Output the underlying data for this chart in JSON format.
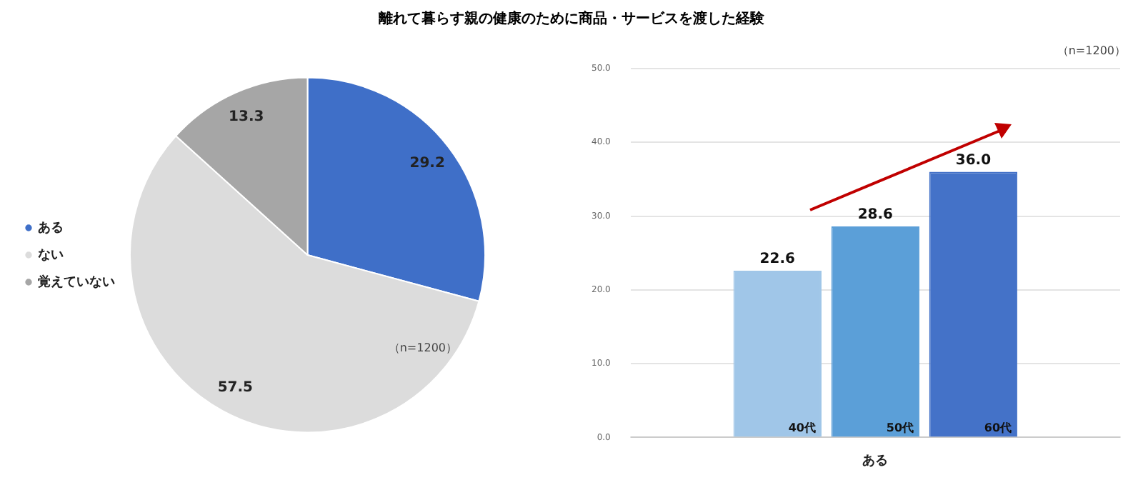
{
  "chart_data": [
    {
      "type": "pie",
      "title": "離れて暮らす親の健康のために商品・サービスを渡した経験",
      "categories": [
        "ある",
        "ない",
        "覚えていない"
      ],
      "values": [
        29.2,
        57.5,
        13.3
      ],
      "colors": [
        "#3f6fc8",
        "#dcdcdc",
        "#a6a6a6"
      ],
      "data_labels": true,
      "legend": "left",
      "annotations": [
        "（n=1200）"
      ]
    },
    {
      "type": "bar",
      "categories": [
        "ある"
      ],
      "series": [
        {
          "name": "40代",
          "color": "#a0c6e8",
          "values": [
            22.6
          ],
          "value_labels": [
            "22.6"
          ]
        },
        {
          "name": "50代",
          "color": "#5b9fd8",
          "values": [
            28.6
          ],
          "value_labels": [
            "28.6"
          ]
        },
        {
          "name": "60代",
          "color": "#4472c8",
          "values": [
            36.0
          ],
          "value_labels": [
            "36.0"
          ]
        }
      ],
      "ylim": [
        0,
        50
      ],
      "yticks": [
        {
          "value": 0,
          "label": "0.0"
        },
        {
          "value": 10,
          "label": "10.0"
        },
        {
          "value": 20,
          "label": "20.0"
        },
        {
          "value": 30,
          "label": "30.0"
        },
        {
          "value": 40,
          "label": "40.0"
        },
        {
          "value": 50,
          "label": "50.0"
        }
      ],
      "grid": "y",
      "annotations": [
        "（n=1200）"
      ]
    }
  ]
}
